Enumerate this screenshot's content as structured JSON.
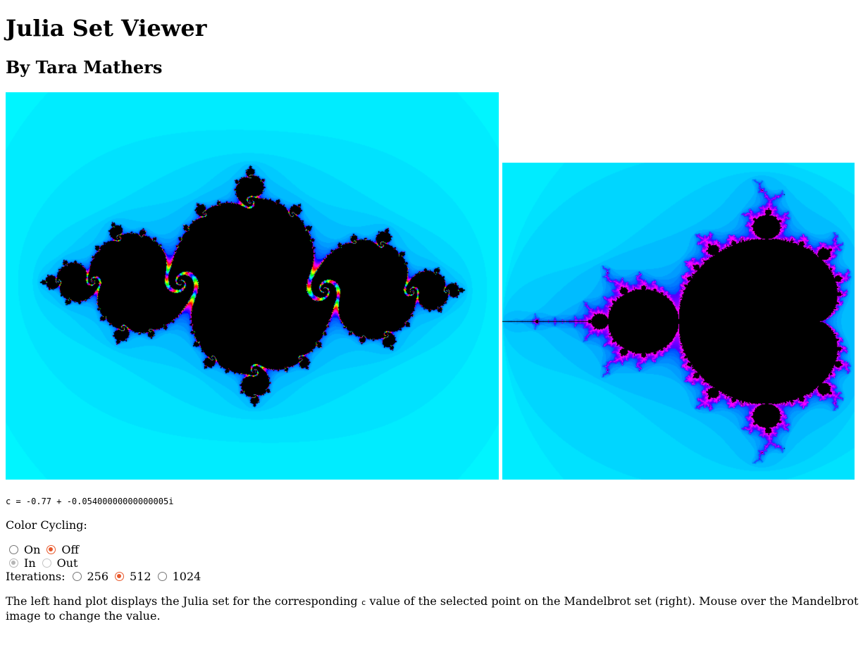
{
  "page": {
    "title": "Julia Set Viewer",
    "author": "By Tara Mathers"
  },
  "c_value_text": "c = -0.77 + -0.05400000000000005i",
  "c_value": {
    "re": -0.77,
    "im": -0.05400000000000005
  },
  "color_cycling": {
    "label": "Color Cycling:",
    "on_label": "On",
    "off_label": "Off",
    "selected": "Off",
    "in_label": "In",
    "out_label": "Out",
    "direction_selected": "In",
    "direction_disabled": true
  },
  "iterations": {
    "label": "Iterations:",
    "options": [
      "256",
      "512",
      "1024"
    ],
    "selected": "512"
  },
  "description": {
    "before": "The left hand plot displays the Julia set for the corresponding ",
    "code": "c",
    "after": " value of the selected point on the Mandelbrot set (right). Mouse over the Mandelbrot image to change the value."
  },
  "colors": {
    "background_far": "#00f5ff",
    "set_interior": "#000000",
    "accent_radio": "#e8572a"
  },
  "plots": {
    "julia": {
      "center": [
        0,
        0
      ],
      "x_range": [
        -1.75,
        1.75
      ]
    },
    "mandelbrot": {
      "x_range": [
        -2.0,
        0.5
      ],
      "y_range": [
        -1.25,
        1.25
      ]
    }
  }
}
